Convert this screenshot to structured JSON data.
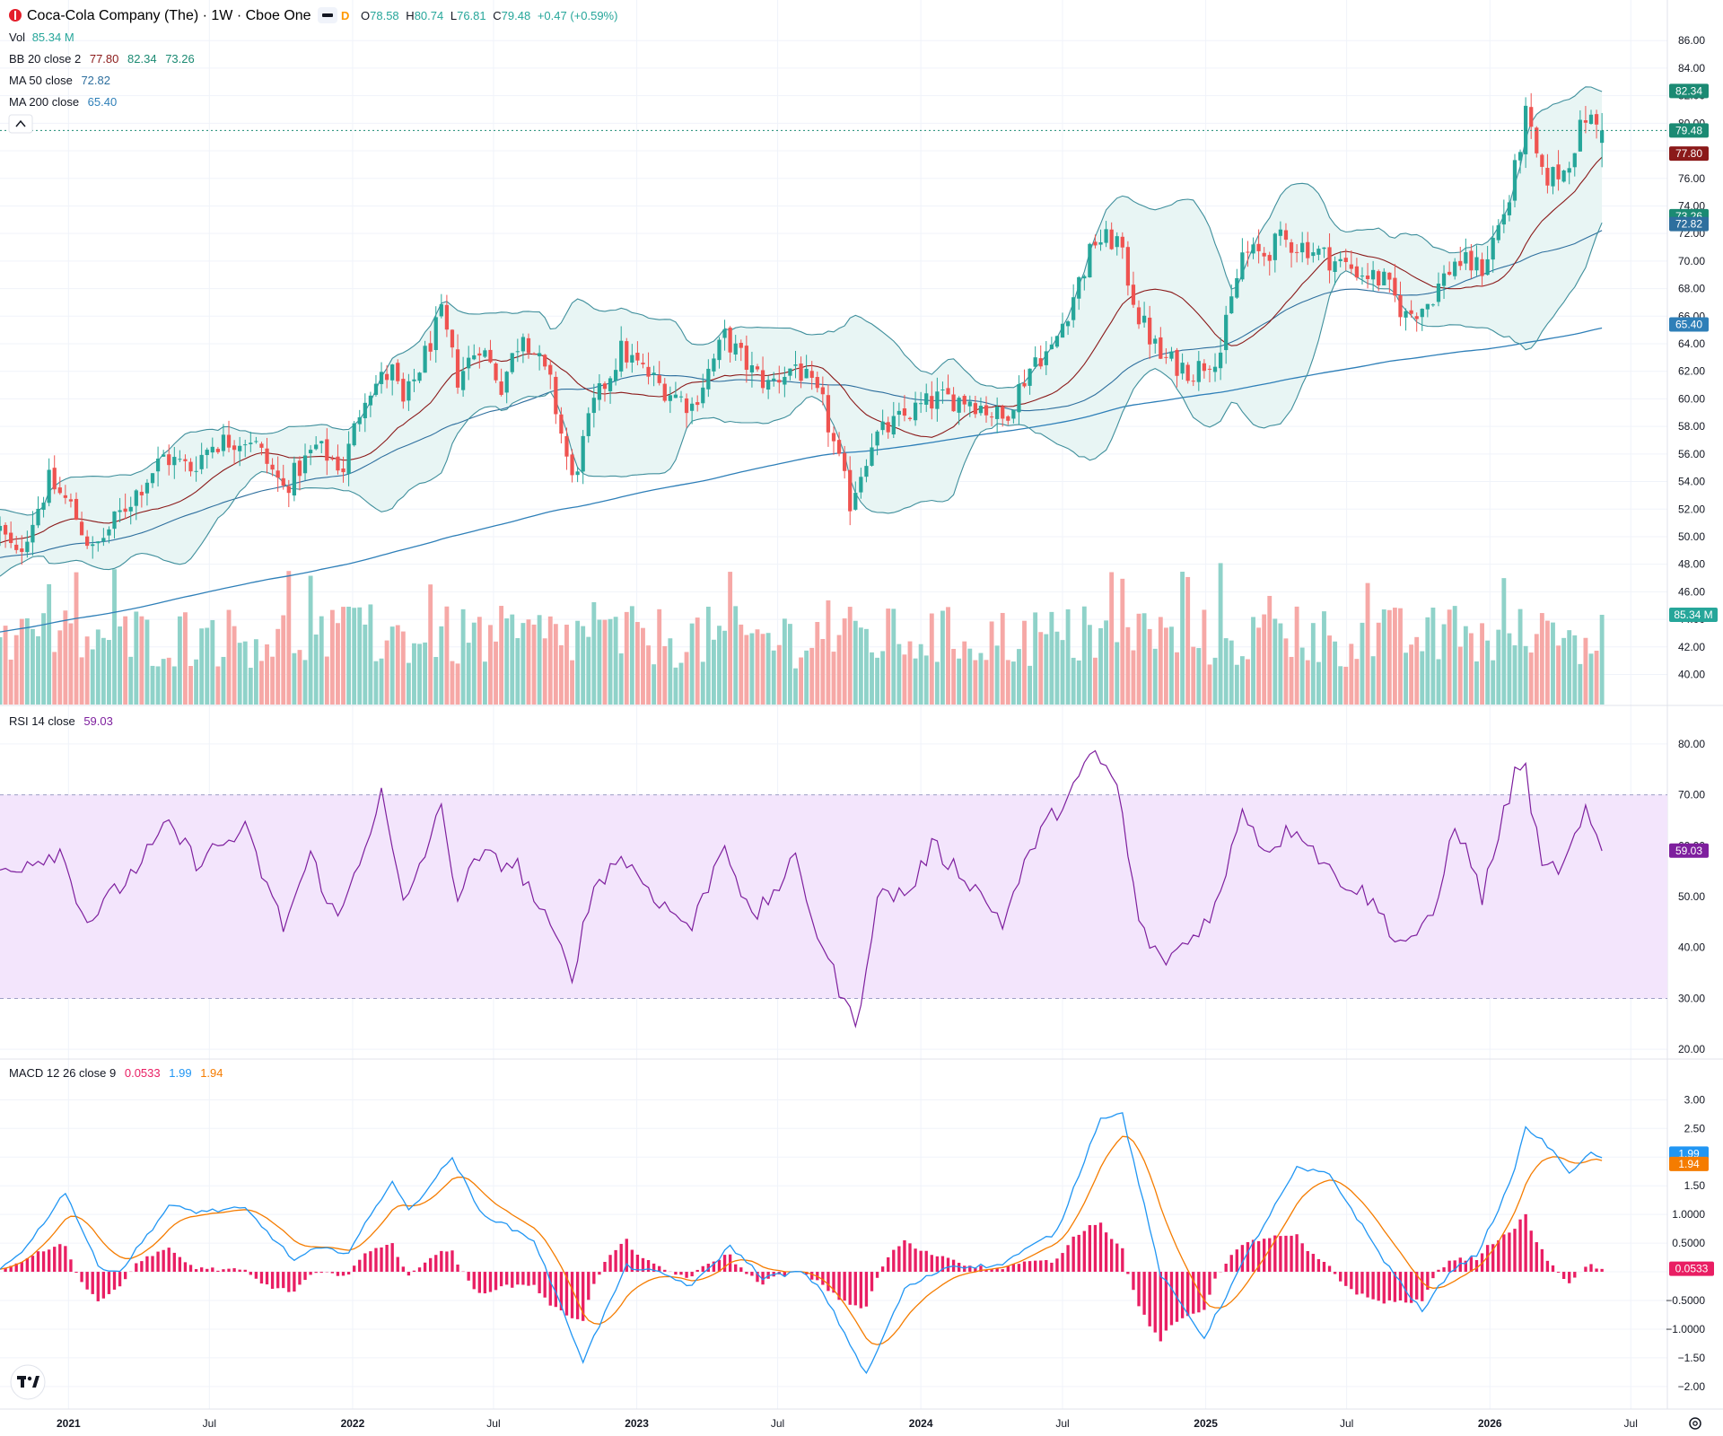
{
  "header": {
    "symbol_title": "Coca-Cola Company (The) · 1W · Cboe One",
    "badge_d": "D",
    "ohlc": {
      "o_label": "O",
      "o": "78.58",
      "h_label": "H",
      "h": "80.74",
      "l_label": "L",
      "l": "76.81",
      "c_label": "C",
      "c": "79.48",
      "change": "+0.47 (+0.59%)"
    }
  },
  "indicators": {
    "vol": {
      "label": "Vol",
      "value": "85.34 M"
    },
    "bb": {
      "label": "BB 20 close 2",
      "basis": "77.80",
      "upper": "82.34",
      "lower": "73.26"
    },
    "ma50": {
      "label": "MA 50 close",
      "value": "72.82"
    },
    "ma200": {
      "label": "MA 200 close",
      "value": "65.40"
    },
    "rsi": {
      "label": "RSI 14 close",
      "value": "59.03"
    },
    "macd": {
      "label": "MACD 12 26 close 9",
      "hist": "0.0533",
      "macd": "1.99",
      "signal": "1.94"
    }
  },
  "price_tags": {
    "bb_upper": "82.34",
    "close": "79.48",
    "bb_basis": "77.80",
    "bb_lower": "73.26",
    "ma50": "72.82",
    "ma200": "65.40",
    "volume": "85.34 M",
    "rsi": "59.03",
    "macd": "1.99",
    "signal": "1.94",
    "hist": "0.0533"
  },
  "colors": {
    "up": "#26a69a",
    "down": "#ef5350",
    "vol_up": "#8fd2c9",
    "vol_down": "#f6a8a6",
    "bb_line": "#3f8f9c",
    "bb_fill": "#e8f5f4",
    "bb_basis": "#8b1a1a",
    "ma50": "#2e6f9e",
    "ma200": "#2e7fb8",
    "rsi": "#7e1f9e",
    "rsi_band": "#f3e5fc",
    "macd": "#2196f3",
    "signal": "#f57c00",
    "hist": "#e91e63",
    "close_tag": "#1b8a73",
    "grid": "#f0f3fa"
  },
  "chart_data": [
    {
      "type": "candlestick",
      "name": "price",
      "y_axis_ticks": [
        "86.00",
        "84.00",
        "82.00",
        "80.00",
        "78.00",
        "76.00",
        "74.00",
        "72.00",
        "70.00",
        "68.00",
        "66.00",
        "64.00",
        "62.00",
        "60.00",
        "58.00",
        "56.00",
        "54.00",
        "52.00",
        "50.00",
        "48.00",
        "46.00",
        "44.00",
        "42.00",
        "40.00"
      ],
      "ylim": [
        38.6,
        86.6
      ],
      "x_axis_ticks": [
        "2021",
        "Jul",
        "2022",
        "Jul",
        "2023",
        "Jul",
        "2024",
        "Jul",
        "2025",
        "Jul",
        "2026",
        "Jul"
      ],
      "xlim": [
        "2020-10-05",
        "2026-08-17"
      ],
      "anchors": [
        {
          "date": "2020-10-05",
          "price": 50.5
        },
        {
          "date": "2020-10-26",
          "price": 48.5
        },
        {
          "date": "2020-12-07",
          "price": 54.0
        },
        {
          "date": "2021-01-04",
          "price": 52.2
        },
        {
          "date": "2021-02-01",
          "price": 48.9
        },
        {
          "date": "2021-03-15",
          "price": 52.2
        },
        {
          "date": "2021-05-03",
          "price": 55.8
        },
        {
          "date": "2021-06-07",
          "price": 55.0
        },
        {
          "date": "2021-07-05",
          "price": 56.8
        },
        {
          "date": "2021-08-23",
          "price": 57.2
        },
        {
          "date": "2021-10-04",
          "price": 53.5
        },
        {
          "date": "2021-11-15",
          "price": 56.5
        },
        {
          "date": "2021-12-20",
          "price": 55.0
        },
        {
          "date": "2022-01-17",
          "price": 60.5
        },
        {
          "date": "2022-02-21",
          "price": 62.0
        },
        {
          "date": "2022-03-07",
          "price": 59.5
        },
        {
          "date": "2022-04-25",
          "price": 66.0
        },
        {
          "date": "2022-05-16",
          "price": 61.5
        },
        {
          "date": "2022-06-13",
          "price": 64.0
        },
        {
          "date": "2022-07-11",
          "price": 61.0
        },
        {
          "date": "2022-08-08",
          "price": 65.0
        },
        {
          "date": "2022-09-12",
          "price": 61.0
        },
        {
          "date": "2022-10-10",
          "price": 54.0
        },
        {
          "date": "2022-11-07",
          "price": 59.5
        },
        {
          "date": "2022-12-12",
          "price": 63.5
        },
        {
          "date": "2023-01-30",
          "price": 61.0
        },
        {
          "date": "2023-03-13",
          "price": 59.5
        },
        {
          "date": "2023-04-24",
          "price": 64.5
        },
        {
          "date": "2023-05-29",
          "price": 62.0
        },
        {
          "date": "2023-06-19",
          "price": 61.0
        },
        {
          "date": "2023-07-24",
          "price": 62.5
        },
        {
          "date": "2023-08-28",
          "price": 59.5
        },
        {
          "date": "2023-10-02",
          "price": 52.5
        },
        {
          "date": "2023-10-30",
          "price": 57.0
        },
        {
          "date": "2023-12-18",
          "price": 59.0
        },
        {
          "date": "2024-01-22",
          "price": 60.0
        },
        {
          "date": "2024-03-04",
          "price": 60.0
        },
        {
          "date": "2024-04-15",
          "price": 58.5
        },
        {
          "date": "2024-05-27",
          "price": 63.0
        },
        {
          "date": "2024-06-17",
          "price": 63.5
        },
        {
          "date": "2024-07-15",
          "price": 67.5
        },
        {
          "date": "2024-08-12",
          "price": 71.5
        },
        {
          "date": "2024-09-09",
          "price": 71.5
        },
        {
          "date": "2024-10-07",
          "price": 66.0
        },
        {
          "date": "2024-11-04",
          "price": 63.0
        },
        {
          "date": "2024-12-16",
          "price": 62.0
        },
        {
          "date": "2025-01-20",
          "price": 63.5
        },
        {
          "date": "2025-02-17",
          "price": 70.5
        },
        {
          "date": "2025-03-17",
          "price": 70.5
        },
        {
          "date": "2025-04-07",
          "price": 71.5
        },
        {
          "date": "2025-05-12",
          "price": 71.0
        },
        {
          "date": "2025-06-16",
          "price": 70.0
        },
        {
          "date": "2025-07-28",
          "price": 69.0
        },
        {
          "date": "2025-08-18",
          "price": 68.5
        },
        {
          "date": "2025-09-15",
          "price": 66.0
        },
        {
          "date": "2025-10-13",
          "price": 67.0
        },
        {
          "date": "2025-11-17",
          "price": 70.0
        },
        {
          "date": "2025-12-22",
          "price": 69.5
        },
        {
          "date": "2026-01-26",
          "price": 74.5
        },
        {
          "date": "2026-02-16",
          "price": 80.5
        },
        {
          "date": "2026-03-09",
          "price": 76.0
        },
        {
          "date": "2026-04-06",
          "price": 76.5
        },
        {
          "date": "2026-05-04",
          "price": 80.5
        },
        {
          "date": "2026-05-25",
          "price": 79.5
        }
      ],
      "last_candle": {
        "open": 78.58,
        "high": 80.74,
        "low": 76.81,
        "close": 79.48
      }
    },
    {
      "type": "bar",
      "name": "Vol",
      "last_value": "85.34 M"
    },
    {
      "type": "line",
      "name": "RSI 14 close",
      "y_axis_ticks": [
        "80.00",
        "70.00",
        "60.00",
        "50.00",
        "40.00",
        "30.00",
        "20.00"
      ],
      "ylim": [
        19.5,
        83.5
      ],
      "band": [
        30,
        70
      ],
      "anchors": [
        {
          "date": "2020-10-05",
          "v": 55
        },
        {
          "date": "2020-12-21",
          "v": 59
        },
        {
          "date": "2021-01-25",
          "v": 45
        },
        {
          "date": "2021-03-15",
          "v": 53
        },
        {
          "date": "2021-05-10",
          "v": 64
        },
        {
          "date": "2021-06-14",
          "v": 57
        },
        {
          "date": "2021-08-16",
          "v": 63
        },
        {
          "date": "2021-10-04",
          "v": 44
        },
        {
          "date": "2021-11-08",
          "v": 58
        },
        {
          "date": "2021-12-13",
          "v": 45
        },
        {
          "date": "2022-02-07",
          "v": 70
        },
        {
          "date": "2022-03-07",
          "v": 48
        },
        {
          "date": "2022-04-25",
          "v": 67
        },
        {
          "date": "2022-05-16",
          "v": 50
        },
        {
          "date": "2022-06-13",
          "v": 58
        },
        {
          "date": "2022-08-01",
          "v": 56
        },
        {
          "date": "2022-10-10",
          "v": 35
        },
        {
          "date": "2022-11-07",
          "v": 52
        },
        {
          "date": "2022-12-12",
          "v": 58
        },
        {
          "date": "2023-02-06",
          "v": 48
        },
        {
          "date": "2023-03-13",
          "v": 44
        },
        {
          "date": "2023-04-24",
          "v": 61
        },
        {
          "date": "2023-05-29",
          "v": 45
        },
        {
          "date": "2023-07-24",
          "v": 57
        },
        {
          "date": "2023-08-21",
          "v": 43
        },
        {
          "date": "2023-10-09",
          "v": 24
        },
        {
          "date": "2023-11-06",
          "v": 50
        },
        {
          "date": "2023-12-18",
          "v": 51
        },
        {
          "date": "2024-01-15",
          "v": 60
        },
        {
          "date": "2024-03-04",
          "v": 53
        },
        {
          "date": "2024-04-15",
          "v": 45
        },
        {
          "date": "2024-05-27",
          "v": 61
        },
        {
          "date": "2024-07-08",
          "v": 70
        },
        {
          "date": "2024-08-12",
          "v": 78
        },
        {
          "date": "2024-09-09",
          "v": 72
        },
        {
          "date": "2024-10-07",
          "v": 45
        },
        {
          "date": "2024-11-04",
          "v": 37
        },
        {
          "date": "2024-12-16",
          "v": 42
        },
        {
          "date": "2025-01-20",
          "v": 50
        },
        {
          "date": "2025-02-17",
          "v": 68
        },
        {
          "date": "2025-03-17",
          "v": 59
        },
        {
          "date": "2025-04-28",
          "v": 64
        },
        {
          "date": "2025-06-09",
          "v": 55
        },
        {
          "date": "2025-07-28",
          "v": 50
        },
        {
          "date": "2025-09-08",
          "v": 41
        },
        {
          "date": "2025-10-20",
          "v": 45
        },
        {
          "date": "2025-11-17",
          "v": 65
        },
        {
          "date": "2025-12-22",
          "v": 50
        },
        {
          "date": "2026-02-02",
          "v": 74
        },
        {
          "date": "2026-02-16",
          "v": 75
        },
        {
          "date": "2026-03-09",
          "v": 55
        },
        {
          "date": "2026-04-06",
          "v": 56
        },
        {
          "date": "2026-05-04",
          "v": 66
        },
        {
          "date": "2026-05-25",
          "v": 59
        }
      ]
    },
    {
      "type": "line",
      "name": "MACD 12 26 close 9",
      "y_axis_ticks": [
        "3.00",
        "2.50",
        "2.00",
        "1.50",
        "1.0000",
        "0.5000",
        "0",
        "−0.5000",
        "−1.0000",
        "−1.50",
        "−2.00"
      ],
      "ylim": [
        -2.3,
        3.35
      ],
      "anchors": [
        {
          "date": "2020-10-05",
          "v": 0.05
        },
        {
          "date": "2020-11-09",
          "v": 0.45
        },
        {
          "date": "2020-12-28",
          "v": 1.4
        },
        {
          "date": "2021-02-08",
          "v": 0.1
        },
        {
          "date": "2021-03-08",
          "v": 0.0
        },
        {
          "date": "2021-05-10",
          "v": 1.15
        },
        {
          "date": "2021-06-14",
          "v": 1.05
        },
        {
          "date": "2021-08-16",
          "v": 1.1
        },
        {
          "date": "2021-10-18",
          "v": 0.2
        },
        {
          "date": "2021-11-15",
          "v": 0.4
        },
        {
          "date": "2021-12-27",
          "v": 0.35
        },
        {
          "date": "2022-02-21",
          "v": 1.6
        },
        {
          "date": "2022-03-14",
          "v": 1.05
        },
        {
          "date": "2022-05-09",
          "v": 2.0
        },
        {
          "date": "2022-06-13",
          "v": 1.05
        },
        {
          "date": "2022-08-22",
          "v": 0.55
        },
        {
          "date": "2022-10-24",
          "v": -1.55
        },
        {
          "date": "2022-12-19",
          "v": 0.1
        },
        {
          "date": "2023-02-06",
          "v": -0.05
        },
        {
          "date": "2023-03-13",
          "v": -0.25
        },
        {
          "date": "2023-05-01",
          "v": 0.45
        },
        {
          "date": "2023-06-12",
          "v": -0.1
        },
        {
          "date": "2023-07-31",
          "v": 0.0
        },
        {
          "date": "2023-08-28",
          "v": -0.35
        },
        {
          "date": "2023-10-23",
          "v": -1.8
        },
        {
          "date": "2023-12-11",
          "v": -0.3
        },
        {
          "date": "2024-02-05",
          "v": 0.1
        },
        {
          "date": "2024-04-08",
          "v": 0.1
        },
        {
          "date": "2024-06-24",
          "v": 0.7
        },
        {
          "date": "2024-08-19",
          "v": 2.7
        },
        {
          "date": "2024-09-16",
          "v": 2.75
        },
        {
          "date": "2024-11-04",
          "v": -0.05
        },
        {
          "date": "2024-12-30",
          "v": -1.15
        },
        {
          "date": "2025-03-03",
          "v": 0.5
        },
        {
          "date": "2025-04-28",
          "v": 1.8
        },
        {
          "date": "2025-06-09",
          "v": 1.7
        },
        {
          "date": "2025-08-18",
          "v": 0.2
        },
        {
          "date": "2025-10-06",
          "v": -0.7
        },
        {
          "date": "2025-11-10",
          "v": 0.0
        },
        {
          "date": "2025-12-15",
          "v": 0.3
        },
        {
          "date": "2026-01-26",
          "v": 1.5
        },
        {
          "date": "2026-02-16",
          "v": 2.5
        },
        {
          "date": "2026-03-09",
          "v": 2.3
        },
        {
          "date": "2026-04-13",
          "v": 1.75
        },
        {
          "date": "2026-05-11",
          "v": 2.05
        },
        {
          "date": "2026-05-25",
          "v": 1.99
        }
      ]
    }
  ]
}
